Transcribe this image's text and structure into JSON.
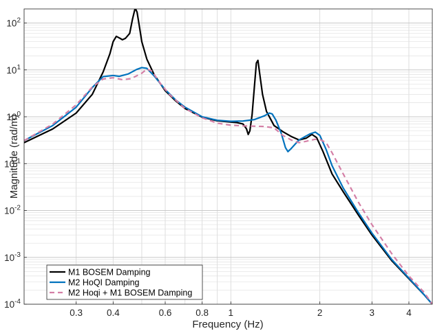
{
  "chart_data": {
    "type": "line",
    "xlabel": "Frequency (Hz)",
    "ylabel": "Magnitude (rad/m)",
    "x_scale": "log",
    "y_scale": "log",
    "xlim": [
      0.2,
      4.8
    ],
    "ylim": [
      0.0001,
      200
    ],
    "grid": true,
    "legend_position": "bottom-left",
    "x_ticks": [
      {
        "value": 0.3,
        "label": "0.3"
      },
      {
        "value": 0.4,
        "label": "0.4"
      },
      {
        "value": 0.6,
        "label": "0.6"
      },
      {
        "value": 0.8,
        "label": "0.8"
      },
      {
        "value": 1,
        "label": "1"
      },
      {
        "value": 2,
        "label": "2"
      },
      {
        "value": 3,
        "label": "3"
      },
      {
        "value": 4,
        "label": "4"
      }
    ],
    "y_ticks": [
      {
        "value": 0.0001,
        "base": "10",
        "exp": "-4"
      },
      {
        "value": 0.001,
        "base": "10",
        "exp": "-3"
      },
      {
        "value": 0.01,
        "base": "10",
        "exp": "-2"
      },
      {
        "value": 0.1,
        "base": "10",
        "exp": "-1"
      },
      {
        "value": 1,
        "base": "10",
        "exp": "0"
      },
      {
        "value": 10,
        "base": "10",
        "exp": "1"
      },
      {
        "value": 100,
        "base": "10",
        "exp": "2"
      }
    ],
    "series": [
      {
        "name": "M1 BOSEM Damping",
        "color": "#000000",
        "dash": "solid",
        "points": [
          [
            0.2,
            0.28
          ],
          [
            0.25,
            0.55
          ],
          [
            0.3,
            1.2
          ],
          [
            0.34,
            3
          ],
          [
            0.37,
            9
          ],
          [
            0.39,
            22
          ],
          [
            0.4,
            40
          ],
          [
            0.41,
            52
          ],
          [
            0.42,
            48
          ],
          [
            0.43,
            44
          ],
          [
            0.44,
            47
          ],
          [
            0.455,
            60
          ],
          [
            0.465,
            120
          ],
          [
            0.475,
            210
          ],
          [
            0.482,
            170
          ],
          [
            0.49,
            90
          ],
          [
            0.5,
            40
          ],
          [
            0.52,
            17
          ],
          [
            0.55,
            8
          ],
          [
            0.6,
            3.6
          ],
          [
            0.65,
            2.2
          ],
          [
            0.7,
            1.5
          ],
          [
            0.8,
            0.98
          ],
          [
            0.9,
            0.82
          ],
          [
            1.0,
            0.77
          ],
          [
            1.05,
            0.75
          ],
          [
            1.1,
            0.7
          ],
          [
            1.13,
            0.55
          ],
          [
            1.145,
            0.42
          ],
          [
            1.16,
            0.5
          ],
          [
            1.18,
            1.1
          ],
          [
            1.2,
            4
          ],
          [
            1.22,
            14
          ],
          [
            1.235,
            16
          ],
          [
            1.25,
            9
          ],
          [
            1.28,
            3
          ],
          [
            1.32,
            1.3
          ],
          [
            1.4,
            0.65
          ],
          [
            1.5,
            0.48
          ],
          [
            1.6,
            0.38
          ],
          [
            1.7,
            0.32
          ],
          [
            1.8,
            0.35
          ],
          [
            1.88,
            0.42
          ],
          [
            1.95,
            0.36
          ],
          [
            2.05,
            0.18
          ],
          [
            2.2,
            0.06
          ],
          [
            2.4,
            0.025
          ],
          [
            2.7,
            0.008
          ],
          [
            3.0,
            0.003
          ],
          [
            3.5,
            0.00085
          ],
          [
            4.0,
            0.00035
          ],
          [
            4.5,
            0.00016
          ],
          [
            4.8,
            0.0001
          ]
        ]
      },
      {
        "name": "M2 HoQI Damping",
        "color": "#0072bd",
        "dash": "solid",
        "points": [
          [
            0.2,
            0.31
          ],
          [
            0.25,
            0.65
          ],
          [
            0.3,
            1.6
          ],
          [
            0.34,
            4.2
          ],
          [
            0.37,
            7.2
          ],
          [
            0.4,
            7.6
          ],
          [
            0.42,
            7.3
          ],
          [
            0.45,
            8.2
          ],
          [
            0.48,
            10.2
          ],
          [
            0.5,
            11.2
          ],
          [
            0.52,
            10.8
          ],
          [
            0.55,
            7.5
          ],
          [
            0.6,
            3.8
          ],
          [
            0.65,
            2.3
          ],
          [
            0.7,
            1.6
          ],
          [
            0.8,
            1.0
          ],
          [
            0.9,
            0.84
          ],
          [
            1.0,
            0.8
          ],
          [
            1.1,
            0.81
          ],
          [
            1.2,
            0.87
          ],
          [
            1.3,
            1.05
          ],
          [
            1.35,
            1.2
          ],
          [
            1.38,
            1.15
          ],
          [
            1.42,
            0.85
          ],
          [
            1.48,
            0.45
          ],
          [
            1.53,
            0.22
          ],
          [
            1.56,
            0.18
          ],
          [
            1.6,
            0.21
          ],
          [
            1.7,
            0.32
          ],
          [
            1.85,
            0.43
          ],
          [
            1.93,
            0.47
          ],
          [
            2.0,
            0.4
          ],
          [
            2.1,
            0.2
          ],
          [
            2.2,
            0.09
          ],
          [
            2.4,
            0.03
          ],
          [
            2.7,
            0.009
          ],
          [
            3.0,
            0.0033
          ],
          [
            3.5,
            0.0009
          ],
          [
            4.0,
            0.00036
          ],
          [
            4.5,
            0.00016
          ],
          [
            4.8,
            0.0001
          ]
        ]
      },
      {
        "name": "M2 Hoqi + M1 BOSEM Damping",
        "color": "#d47fa6",
        "dash": "dashed",
        "points": [
          [
            0.2,
            0.31
          ],
          [
            0.25,
            0.7
          ],
          [
            0.3,
            1.8
          ],
          [
            0.34,
            4.3
          ],
          [
            0.37,
            6.4
          ],
          [
            0.4,
            6.8
          ],
          [
            0.43,
            6.2
          ],
          [
            0.46,
            6.5
          ],
          [
            0.5,
            8.5
          ],
          [
            0.52,
            10.4
          ],
          [
            0.54,
            9.5
          ],
          [
            0.58,
            5
          ],
          [
            0.62,
            3
          ],
          [
            0.7,
            1.5
          ],
          [
            0.8,
            0.95
          ],
          [
            0.9,
            0.73
          ],
          [
            1.0,
            0.66
          ],
          [
            1.1,
            0.64
          ],
          [
            1.2,
            0.63
          ],
          [
            1.3,
            0.62
          ],
          [
            1.4,
            0.58
          ],
          [
            1.5,
            0.4
          ],
          [
            1.6,
            0.32
          ],
          [
            1.7,
            0.28
          ],
          [
            1.8,
            0.3
          ],
          [
            1.92,
            0.33
          ],
          [
            2.0,
            0.33
          ],
          [
            2.1,
            0.28
          ],
          [
            2.2,
            0.17
          ],
          [
            2.4,
            0.06
          ],
          [
            2.7,
            0.015
          ],
          [
            3.0,
            0.005
          ],
          [
            3.5,
            0.0012
          ],
          [
            4.0,
            0.0004
          ],
          [
            4.5,
            0.00018
          ],
          [
            4.8,
            0.0001
          ]
        ]
      }
    ]
  }
}
